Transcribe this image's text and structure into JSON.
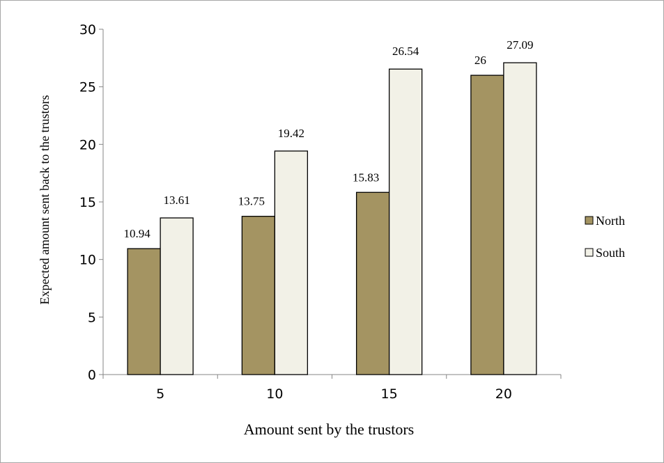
{
  "chart_data": {
    "type": "bar",
    "categories": [
      "5",
      "10",
      "15",
      "20"
    ],
    "series": [
      {
        "name": "North",
        "values": [
          10.94,
          13.75,
          15.83,
          26
        ],
        "labels": [
          "10.94",
          "13.75",
          "15.83",
          "26"
        ],
        "color": "#a49462"
      },
      {
        "name": "South",
        "values": [
          13.61,
          19.42,
          26.54,
          27.09
        ],
        "labels": [
          "13.61",
          "19.42",
          "26.54",
          "27.09"
        ],
        "color": "#f2f1e7"
      }
    ],
    "title": "",
    "xlabel": "Amount sent by the trustors",
    "ylabel": "Expected amount sent back to the trustors",
    "ylim": [
      0,
      30
    ],
    "yticks": [
      "0",
      "5",
      "10",
      "15",
      "20",
      "25",
      "30"
    ],
    "grid": false,
    "legend_position": "right"
  }
}
